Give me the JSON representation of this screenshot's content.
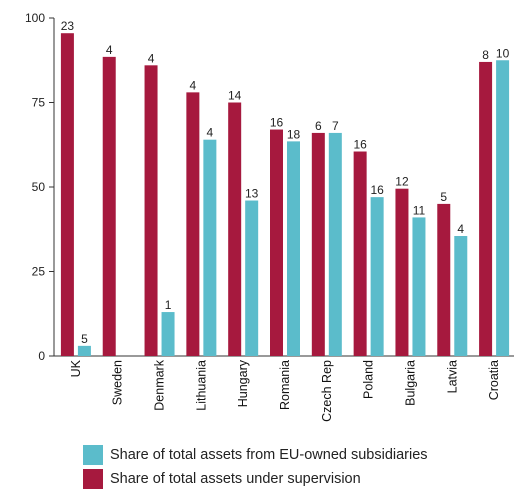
{
  "chart_data": {
    "type": "bar",
    "categories": [
      "UK",
      "Sweden",
      "Denmark",
      "Lithuania",
      "Hungary",
      "Romania",
      "Czech Rep",
      "Poland",
      "Bulgaria",
      "Latvia",
      "Croatia"
    ],
    "series": [
      {
        "name": "Share of total assets under supervision",
        "color": "#A6193E",
        "values": [
          95.5,
          88.5,
          86,
          78,
          75,
          67,
          66,
          60.5,
          49.5,
          45,
          87
        ],
        "labels": [
          "23",
          "4",
          "4",
          "4",
          "14",
          "16",
          "6",
          "16",
          "12",
          "5",
          "8"
        ]
      },
      {
        "name": "Share of total assets from EU-owned subsidiaries",
        "color": "#5BBCCB",
        "values": [
          3,
          null,
          13,
          64,
          46,
          63.5,
          66,
          47,
          41,
          35.5,
          87.5
        ],
        "labels": [
          "5",
          "",
          "1",
          "4",
          "13",
          "18",
          "7",
          "16",
          "11",
          "4",
          "10"
        ]
      }
    ],
    "yticks": [
      "0",
      "25",
      "50",
      "75",
      "100"
    ],
    "ylim": [
      0,
      100
    ],
    "grid": false,
    "legend_position": "bottom",
    "legend": [
      {
        "label": "Share of total assets from EU-owned subsidiaries",
        "color": "#5BBCCB"
      },
      {
        "label": "Share of total assets under supervision",
        "color": "#A6193E"
      }
    ]
  }
}
